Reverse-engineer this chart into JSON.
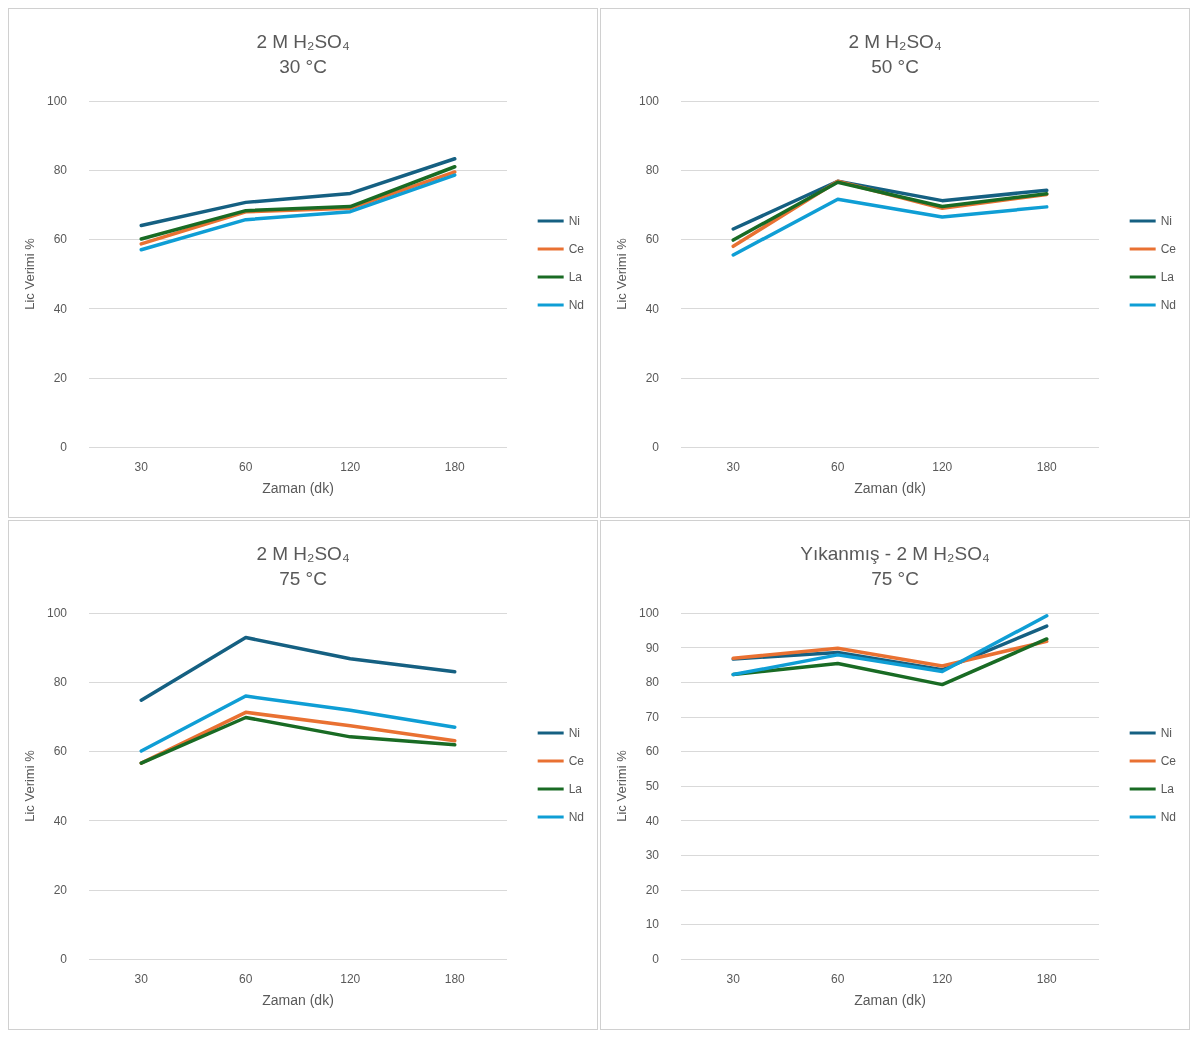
{
  "chart_data": [
    {
      "type": "line",
      "title": "2 M H₂SO₄",
      "subtitle": "30 °C",
      "xlabel": "Zaman (dk)",
      "ylabel": "Lic Verimi %",
      "categories": [
        "30",
        "60",
        "120",
        "180"
      ],
      "ylim": [
        0,
        100
      ],
      "yticks": [
        0,
        20,
        40,
        60,
        80,
        100
      ],
      "grid": "y",
      "legend": "right",
      "marker": "none",
      "line_style": "solid",
      "series": [
        {
          "name": "Ni",
          "color": "#156082",
          "values": [
            64,
            70.7,
            73.3,
            83.3
          ]
        },
        {
          "name": "Ce",
          "color": "#e97132",
          "values": [
            58.7,
            68,
            69,
            79.5
          ]
        },
        {
          "name": "La",
          "color": "#196b24",
          "values": [
            60.1,
            68.3,
            69.5,
            81
          ]
        },
        {
          "name": "Nd",
          "color": "#0f9ed5",
          "values": [
            57,
            65.7,
            68,
            78.6
          ]
        }
      ]
    },
    {
      "type": "line",
      "title": "2 M H₂SO₄",
      "subtitle": "50 °C",
      "xlabel": "Zaman (dk)",
      "ylabel": "Lic Verimi %",
      "categories": [
        "30",
        "60",
        "120",
        "180"
      ],
      "ylim": [
        0,
        100
      ],
      "yticks": [
        0,
        20,
        40,
        60,
        80,
        100
      ],
      "grid": "y",
      "legend": "right",
      "marker": "none",
      "line_style": "solid",
      "series": [
        {
          "name": "Ni",
          "color": "#156082",
          "values": [
            63,
            76.8,
            71.2,
            74.2
          ]
        },
        {
          "name": "Ce",
          "color": "#e97132",
          "values": [
            58,
            76.8,
            69,
            73
          ]
        },
        {
          "name": "La",
          "color": "#196b24",
          "values": [
            59.8,
            76.5,
            69.5,
            73.2
          ]
        },
        {
          "name": "Nd",
          "color": "#0f9ed5",
          "values": [
            55.5,
            71.6,
            66.5,
            69.4
          ]
        }
      ]
    },
    {
      "type": "line",
      "title": "2 M H₂SO₄",
      "subtitle": "75 °C",
      "xlabel": "Zaman (dk)",
      "ylabel": "Lic Verimi %",
      "categories": [
        "30",
        "60",
        "120",
        "180"
      ],
      "ylim": [
        0,
        100
      ],
      "yticks": [
        0,
        20,
        40,
        60,
        80,
        100
      ],
      "grid": "y",
      "legend": "right",
      "marker": "none",
      "line_style": "solid",
      "series": [
        {
          "name": "Ni",
          "color": "#156082",
          "values": [
            74.8,
            92.9,
            86.8,
            83
          ]
        },
        {
          "name": "Ce",
          "color": "#e97132",
          "values": [
            56.6,
            71.3,
            67.4,
            63.1
          ]
        },
        {
          "name": "La",
          "color": "#196b24",
          "values": [
            56.6,
            69.8,
            64.2,
            61.9
          ]
        },
        {
          "name": "Nd",
          "color": "#0f9ed5",
          "values": [
            60.1,
            76,
            71.9,
            67
          ]
        }
      ]
    },
    {
      "type": "line",
      "title": "Yıkanmış - 2 M H₂SO₄",
      "subtitle": "75 °C",
      "xlabel": "Zaman (dk)",
      "ylabel": "Lic Verimi %",
      "categories": [
        "30",
        "60",
        "120",
        "180"
      ],
      "ylim": [
        0,
        100
      ],
      "yticks": [
        0,
        10,
        20,
        30,
        40,
        50,
        60,
        70,
        80,
        90,
        100
      ],
      "grid": "y",
      "legend": "right",
      "marker": "none",
      "line_style": "solid",
      "series": [
        {
          "name": "Ni",
          "color": "#156082",
          "values": [
            86.7,
            88.6,
            83.6,
            96.2
          ]
        },
        {
          "name": "Ce",
          "color": "#e97132",
          "values": [
            86.9,
            89.8,
            84.7,
            91.8
          ]
        },
        {
          "name": "La",
          "color": "#196b24",
          "values": [
            82.2,
            85.4,
            79.3,
            92.5
          ]
        },
        {
          "name": "Nd",
          "color": "#0f9ed5",
          "values": [
            82.2,
            87.9,
            83.1,
            99.2
          ]
        }
      ]
    }
  ]
}
